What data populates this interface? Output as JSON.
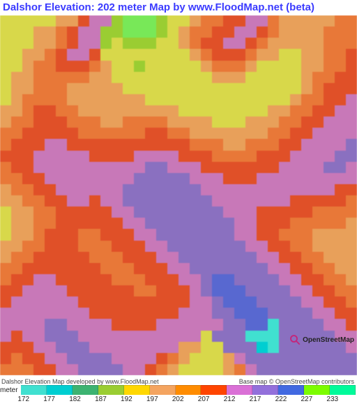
{
  "title": {
    "text": "Dalshor Elevation: 202 meter Map by www.FloodMap.net (beta)",
    "color": "#3b3bff"
  },
  "credits": {
    "left": "Dalshor Elevation Map developed by www.FloodMap.net",
    "right": "Base map © OpenStreetMap contributors",
    "attribution_label": "OpenStreetMap",
    "magnifier_color": "#c4257a"
  },
  "legend": {
    "unit_label": "meter",
    "ticks": [
      "172",
      "177",
      "182",
      "187",
      "192",
      "197",
      "202",
      "207",
      "212",
      "217",
      "222",
      "227",
      "233"
    ],
    "colors": [
      "#40e0d0",
      "#00ced1",
      "#3cb371",
      "#9acd32",
      "#ffd700",
      "#f4a460",
      "#ff8c00",
      "#ff4500",
      "#da70d6",
      "#9370db",
      "#4169e1",
      "#7cfc00",
      "#00fa9a"
    ]
  },
  "map": {
    "type": "heatmap",
    "grid_size": [
      32,
      32
    ],
    "background_color": "#ffffff",
    "palette": {
      "0": "#40e0d0",
      "1": "#00ced1",
      "2": "#3cb371",
      "3": "#9acd32",
      "4": "#d8d84a",
      "5": "#e8a05a",
      "6": "#e87838",
      "7": "#e05028",
      "8": "#c878b8",
      "9": "#8a70c0",
      "10": "#5868d0",
      "11": "#78e858",
      "12": "#50e098"
    },
    "cells": [
      [
        4,
        4,
        4,
        4,
        4,
        5,
        5,
        7,
        8,
        8,
        3,
        11,
        11,
        11,
        3,
        4,
        4,
        5,
        6,
        6,
        7,
        7,
        8,
        8,
        6,
        5,
        5,
        5,
        5,
        5,
        6,
        6
      ],
      [
        4,
        4,
        4,
        5,
        5,
        6,
        7,
        8,
        8,
        3,
        3,
        11,
        11,
        11,
        3,
        4,
        5,
        6,
        6,
        7,
        7,
        8,
        8,
        7,
        6,
        5,
        5,
        5,
        5,
        6,
        6,
        6
      ],
      [
        4,
        4,
        4,
        5,
        5,
        6,
        7,
        8,
        8,
        3,
        4,
        3,
        3,
        3,
        4,
        4,
        5,
        6,
        7,
        7,
        8,
        8,
        7,
        6,
        5,
        5,
        5,
        5,
        5,
        6,
        6,
        6
      ],
      [
        4,
        4,
        5,
        5,
        6,
        7,
        8,
        8,
        7,
        4,
        4,
        4,
        4,
        4,
        4,
        4,
        4,
        5,
        6,
        7,
        7,
        7,
        6,
        5,
        5,
        4,
        4,
        5,
        5,
        6,
        6,
        7
      ],
      [
        4,
        4,
        5,
        6,
        6,
        7,
        7,
        7,
        6,
        5,
        4,
        4,
        3,
        4,
        4,
        4,
        4,
        4,
        5,
        6,
        6,
        6,
        5,
        4,
        4,
        4,
        4,
        5,
        5,
        6,
        6,
        7
      ],
      [
        4,
        5,
        5,
        6,
        6,
        6,
        6,
        6,
        5,
        5,
        4,
        4,
        4,
        4,
        4,
        4,
        4,
        4,
        4,
        5,
        5,
        5,
        4,
        4,
        4,
        4,
        4,
        5,
        6,
        6,
        7,
        7
      ],
      [
        4,
        5,
        5,
        6,
        6,
        6,
        5,
        5,
        5,
        5,
        5,
        4,
        4,
        4,
        4,
        4,
        4,
        4,
        4,
        4,
        4,
        4,
        4,
        4,
        4,
        4,
        4,
        5,
        6,
        7,
        7,
        7
      ],
      [
        4,
        5,
        6,
        6,
        6,
        6,
        5,
        5,
        5,
        5,
        5,
        5,
        5,
        4,
        4,
        4,
        4,
        4,
        4,
        4,
        4,
        4,
        4,
        4,
        4,
        4,
        5,
        6,
        6,
        7,
        7,
        8
      ],
      [
        5,
        5,
        6,
        7,
        7,
        6,
        6,
        5,
        5,
        5,
        5,
        5,
        5,
        5,
        5,
        5,
        4,
        4,
        4,
        4,
        4,
        4,
        4,
        4,
        5,
        5,
        6,
        6,
        7,
        7,
        8,
        8
      ],
      [
        5,
        6,
        6,
        7,
        7,
        7,
        6,
        6,
        6,
        5,
        5,
        6,
        6,
        6,
        6,
        5,
        5,
        5,
        5,
        4,
        4,
        4,
        5,
        5,
        5,
        6,
        6,
        7,
        7,
        8,
        8,
        8
      ],
      [
        6,
        6,
        7,
        7,
        7,
        7,
        7,
        6,
        6,
        6,
        6,
        6,
        6,
        7,
        7,
        6,
        6,
        5,
        5,
        5,
        5,
        5,
        5,
        5,
        6,
        6,
        7,
        7,
        8,
        8,
        8,
        8
      ],
      [
        6,
        7,
        7,
        7,
        8,
        8,
        7,
        7,
        7,
        7,
        7,
        7,
        7,
        7,
        7,
        7,
        7,
        6,
        6,
        6,
        5,
        5,
        6,
        6,
        6,
        7,
        7,
        8,
        8,
        8,
        8,
        9
      ],
      [
        7,
        7,
        7,
        8,
        8,
        8,
        8,
        8,
        7,
        7,
        7,
        7,
        8,
        8,
        8,
        8,
        7,
        7,
        7,
        6,
        6,
        6,
        6,
        7,
        7,
        7,
        8,
        8,
        8,
        8,
        9,
        9
      ],
      [
        6,
        7,
        7,
        8,
        8,
        8,
        8,
        8,
        8,
        8,
        8,
        8,
        8,
        9,
        9,
        8,
        8,
        8,
        7,
        7,
        7,
        7,
        7,
        7,
        7,
        8,
        8,
        8,
        8,
        9,
        9,
        8
      ],
      [
        6,
        6,
        7,
        7,
        8,
        8,
        8,
        8,
        8,
        8,
        8,
        8,
        9,
        9,
        9,
        9,
        9,
        8,
        8,
        8,
        7,
        7,
        7,
        8,
        8,
        8,
        8,
        8,
        8,
        8,
        8,
        8
      ],
      [
        5,
        6,
        6,
        7,
        7,
        8,
        8,
        8,
        8,
        8,
        8,
        9,
        9,
        9,
        9,
        9,
        9,
        9,
        8,
        8,
        8,
        8,
        8,
        8,
        8,
        8,
        8,
        8,
        8,
        8,
        7,
        7
      ],
      [
        5,
        5,
        6,
        6,
        7,
        7,
        8,
        8,
        7,
        8,
        8,
        9,
        9,
        9,
        9,
        9,
        9,
        9,
        9,
        8,
        8,
        8,
        8,
        8,
        8,
        8,
        7,
        7,
        7,
        7,
        7,
        6
      ],
      [
        4,
        5,
        5,
        6,
        6,
        7,
        7,
        7,
        7,
        7,
        8,
        8,
        9,
        9,
        9,
        9,
        9,
        9,
        9,
        9,
        8,
        8,
        8,
        7,
        7,
        7,
        7,
        7,
        6,
        6,
        6,
        6
      ],
      [
        4,
        5,
        5,
        6,
        6,
        7,
        7,
        7,
        7,
        7,
        7,
        8,
        8,
        9,
        9,
        9,
        9,
        9,
        9,
        9,
        9,
        8,
        8,
        7,
        7,
        7,
        6,
        6,
        6,
        6,
        6,
        5
      ],
      [
        4,
        5,
        5,
        6,
        7,
        7,
        7,
        6,
        6,
        7,
        7,
        7,
        8,
        8,
        9,
        9,
        9,
        9,
        9,
        9,
        9,
        8,
        8,
        7,
        7,
        6,
        6,
        6,
        5,
        5,
        5,
        5
      ],
      [
        5,
        5,
        6,
        6,
        7,
        7,
        7,
        6,
        6,
        6,
        7,
        7,
        7,
        8,
        8,
        9,
        9,
        9,
        9,
        9,
        9,
        9,
        8,
        8,
        7,
        7,
        6,
        6,
        5,
        5,
        5,
        5
      ],
      [
        5,
        6,
        6,
        7,
        7,
        7,
        7,
        7,
        6,
        6,
        6,
        7,
        7,
        7,
        8,
        8,
        9,
        9,
        9,
        9,
        9,
        9,
        9,
        8,
        8,
        7,
        7,
        6,
        6,
        5,
        5,
        5
      ],
      [
        6,
        6,
        7,
        7,
        7,
        7,
        7,
        7,
        7,
        6,
        6,
        6,
        7,
        7,
        7,
        8,
        8,
        9,
        9,
        9,
        9,
        9,
        9,
        9,
        8,
        8,
        7,
        7,
        6,
        6,
        5,
        5
      ],
      [
        6,
        7,
        7,
        8,
        8,
        7,
        7,
        7,
        7,
        7,
        6,
        6,
        6,
        7,
        7,
        7,
        8,
        8,
        9,
        10,
        10,
        9,
        9,
        9,
        9,
        8,
        8,
        7,
        7,
        6,
        6,
        5
      ],
      [
        7,
        7,
        8,
        8,
        8,
        8,
        7,
        7,
        7,
        7,
        7,
        7,
        6,
        6,
        7,
        7,
        7,
        8,
        9,
        10,
        10,
        10,
        9,
        9,
        9,
        9,
        8,
        8,
        7,
        7,
        6,
        6
      ],
      [
        7,
        8,
        8,
        8,
        8,
        8,
        8,
        7,
        7,
        7,
        7,
        7,
        7,
        7,
        7,
        7,
        7,
        8,
        8,
        9,
        10,
        10,
        10,
        9,
        9,
        9,
        9,
        8,
        8,
        7,
        7,
        6
      ],
      [
        8,
        8,
        8,
        8,
        8,
        8,
        8,
        8,
        7,
        7,
        7,
        7,
        7,
        7,
        7,
        7,
        8,
        8,
        8,
        9,
        9,
        10,
        10,
        10,
        9,
        9,
        9,
        9,
        8,
        8,
        7,
        7
      ],
      [
        8,
        8,
        8,
        8,
        9,
        9,
        8,
        8,
        8,
        8,
        7,
        7,
        7,
        7,
        8,
        8,
        8,
        8,
        8,
        8,
        9,
        9,
        10,
        10,
        0,
        9,
        9,
        9,
        9,
        8,
        8,
        7
      ],
      [
        8,
        7,
        8,
        8,
        9,
        9,
        9,
        8,
        8,
        8,
        8,
        8,
        8,
        8,
        8,
        8,
        8,
        8,
        4,
        9,
        9,
        9,
        0,
        0,
        0,
        9,
        9,
        9,
        9,
        9,
        8,
        8
      ],
      [
        7,
        7,
        7,
        8,
        8,
        9,
        9,
        9,
        8,
        8,
        8,
        8,
        8,
        8,
        8,
        8,
        5,
        5,
        4,
        4,
        9,
        9,
        9,
        1,
        0,
        9,
        9,
        9,
        9,
        9,
        9,
        8
      ],
      [
        7,
        6,
        7,
        7,
        8,
        8,
        9,
        9,
        9,
        9,
        8,
        8,
        8,
        8,
        7,
        6,
        5,
        4,
        4,
        4,
        5,
        8,
        9,
        9,
        9,
        9,
        9,
        9,
        9,
        9,
        9,
        9
      ],
      [
        6,
        6,
        6,
        7,
        7,
        8,
        8,
        9,
        9,
        9,
        9,
        8,
        8,
        7,
        6,
        5,
        4,
        4,
        4,
        4,
        5,
        6,
        8,
        9,
        9,
        9,
        9,
        9,
        9,
        9,
        9,
        9
      ]
    ]
  }
}
